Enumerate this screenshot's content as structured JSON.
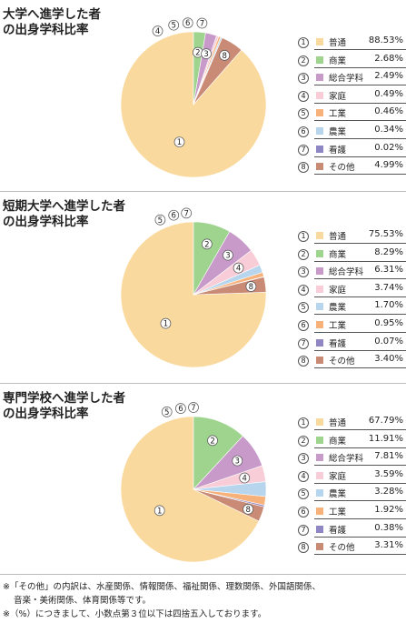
{
  "charts": [
    {
      "title_lines": [
        "大学へ進学した者",
        "の出身学科比率"
      ],
      "labels": [
        "普通",
        "商業",
        "総合学科",
        "家庭",
        "工業",
        "農業",
        "看護",
        "その他"
      ],
      "values_text": [
        "88.53%",
        "2.68%",
        "2.49%",
        "0.49%",
        "0.46%",
        "0.34%",
        "0.02%",
        "4.99%"
      ]
    },
    {
      "title_lines": [
        "短期大学へ進学した者",
        "の出身学科比率"
      ],
      "labels": [
        "普通",
        "商業",
        "総合学科",
        "家庭",
        "農業",
        "工業",
        "看護",
        "その他"
      ],
      "values_text": [
        "75.53%",
        "8.29%",
        "6.31%",
        "3.74%",
        "1.70%",
        "0.95%",
        "0.07%",
        "3.40%"
      ]
    },
    {
      "title_lines": [
        "専門学校へ進学した者",
        "の出身学科比率"
      ],
      "labels": [
        "普通",
        "商業",
        "総合学科",
        "家庭",
        "農業",
        "工業",
        "看護",
        "その他"
      ],
      "values_text": [
        "67.79%",
        "11.91%",
        "7.81%",
        "3.59%",
        "3.28%",
        "1.92%",
        "0.38%",
        "3.31%"
      ]
    }
  ],
  "chart_data": [
    {
      "type": "pie",
      "title": "大学へ進学した者の出身学科比率",
      "categories": [
        "普通",
        "商業",
        "総合学科",
        "家庭",
        "工業",
        "農業",
        "看護",
        "その他"
      ],
      "values": [
        88.53,
        2.68,
        2.49,
        0.49,
        0.46,
        0.34,
        0.02,
        4.99
      ],
      "colors": [
        "#fad99e",
        "#9ed48e",
        "#c79ac9",
        "#f8cdd8",
        "#f7b27c",
        "#b7d6ee",
        "#8f86c4",
        "#c98a76"
      ]
    },
    {
      "type": "pie",
      "title": "短期大学へ進学した者の出身学科比率",
      "categories": [
        "普通",
        "商業",
        "総合学科",
        "家庭",
        "農業",
        "工業",
        "看護",
        "その他"
      ],
      "values": [
        75.53,
        8.29,
        6.31,
        3.74,
        1.7,
        0.95,
        0.07,
        3.4
      ],
      "colors": [
        "#fad99e",
        "#9ed48e",
        "#c79ac9",
        "#f8cdd8",
        "#b7d6ee",
        "#f7b27c",
        "#8f86c4",
        "#c98a76"
      ]
    },
    {
      "type": "pie",
      "title": "専門学校へ進学した者の出身学科比率",
      "categories": [
        "普通",
        "商業",
        "総合学科",
        "家庭",
        "農業",
        "工業",
        "看護",
        "その他"
      ],
      "values": [
        67.79,
        11.91,
        7.81,
        3.59,
        3.28,
        1.92,
        0.38,
        3.31
      ],
      "colors": [
        "#fad99e",
        "#9ed48e",
        "#c79ac9",
        "#f8cdd8",
        "#b7d6ee",
        "#f7b27c",
        "#8f86c4",
        "#c98a76"
      ]
    }
  ],
  "footnotes": [
    "※「その他」の内訳は、水産関係、情報関係、福祉関係、理数関係、外国語関係、",
    "音楽・美術関係、体育関係等です。",
    "※（%）につきまして、小数点第３位以下は四捨五入しております。"
  ]
}
